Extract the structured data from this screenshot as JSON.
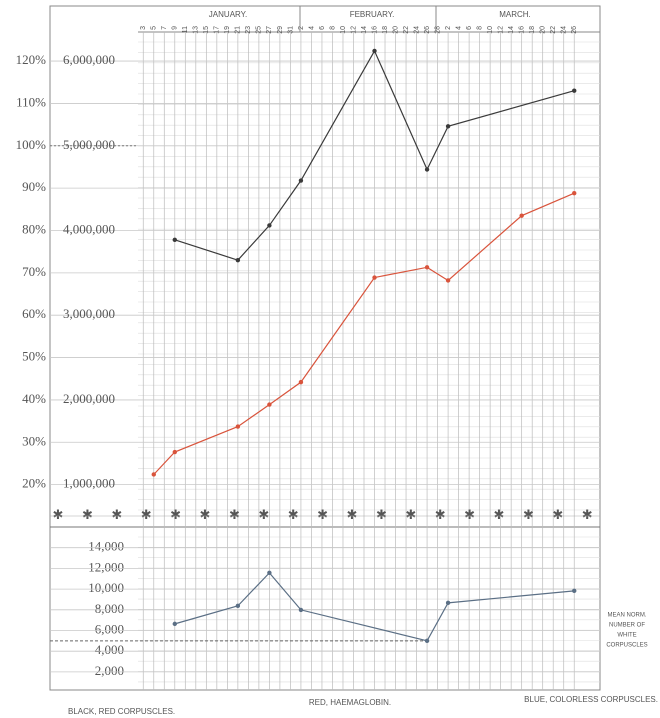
{
  "chart_data": [
    {
      "type": "line",
      "months": [
        "JANUARY.",
        "FEBRUARY.",
        "MARCH."
      ],
      "xlim": [
        2,
        88
      ],
      "xticks": [
        3,
        5,
        7,
        9,
        11,
        13,
        15,
        17,
        19,
        21,
        23,
        25,
        27,
        29,
        31,
        {
          "value": 33,
          "label": "2"
        },
        {
          "value": 35,
          "label": "4"
        },
        {
          "value": 37,
          "label": "6"
        },
        {
          "value": 39,
          "label": "8"
        },
        {
          "value": 41,
          "label": "10"
        },
        {
          "value": 43,
          "label": "12"
        },
        {
          "value": 45,
          "label": "14"
        },
        {
          "value": 47,
          "label": "16"
        },
        {
          "value": 49,
          "label": "18"
        },
        {
          "value": 51,
          "label": "20"
        },
        {
          "value": 53,
          "label": "22"
        },
        {
          "value": 55,
          "label": "24"
        },
        {
          "value": 57,
          "label": "26"
        },
        {
          "value": 59,
          "label": "28"
        },
        {
          "value": 61,
          "label": "2"
        },
        {
          "value": 63,
          "label": "4"
        },
        {
          "value": 65,
          "label": "6"
        },
        {
          "value": 67,
          "label": "8"
        },
        {
          "value": 69,
          "label": "10"
        },
        {
          "value": 71,
          "label": "12"
        },
        {
          "value": 73,
          "label": "14"
        },
        {
          "value": 75,
          "label": "16"
        },
        {
          "value": 77,
          "label": "18"
        },
        {
          "value": 79,
          "label": "20"
        },
        {
          "value": 81,
          "label": "22"
        },
        {
          "value": 83,
          "label": "24"
        },
        {
          "value": 85,
          "label": "26"
        }
      ],
      "ylim": [
        10,
        133
      ],
      "yticks": [
        {
          "value": 20,
          "label": "20%"
        },
        {
          "value": 30,
          "label": "30%"
        },
        {
          "value": 40,
          "label": "40%"
        },
        {
          "value": 50,
          "label": "50%"
        },
        {
          "value": 60,
          "label": "60%"
        },
        {
          "value": 70,
          "label": "70%"
        },
        {
          "value": 80,
          "label": "80%"
        },
        {
          "value": 90,
          "label": "90%"
        },
        {
          "value": 100,
          "label": "100%"
        },
        {
          "value": 110,
          "label": "110%"
        },
        {
          "value": 120,
          "label": "120%"
        }
      ],
      "y2lim": [
        500000,
        6650000
      ],
      "y2ticks": [
        {
          "value": 1000000,
          "label": "1,000,000"
        },
        {
          "value": 2000000,
          "label": "2,000,000"
        },
        {
          "value": 3000000,
          "label": "3,000,000"
        },
        {
          "value": 4000000,
          "label": "4,000,000"
        },
        {
          "value": 5000000,
          "label": "5,000,000"
        },
        {
          "value": 6000000,
          "label": "6,000,000"
        }
      ],
      "reference_line": 100,
      "grid": true,
      "series": [
        {
          "name": "BLACK, RED CORPUSCLES.",
          "color": "#3a3a3a",
          "axis": "y2",
          "x": [
            9,
            21,
            27,
            33,
            47,
            57,
            61,
            85
          ],
          "values": [
            3890000,
            3650000,
            4060000,
            4590000,
            6120000,
            4720000,
            5230000,
            5650000
          ]
        },
        {
          "name": "RED, HAEMAGLOBIN.",
          "color": "#d9543c",
          "x": [
            5,
            9,
            21,
            27,
            33,
            47,
            57,
            61,
            75,
            85
          ],
          "values": [
            22.4,
            27.7,
            33.7,
            38.9,
            44.2,
            68.9,
            71.3,
            68.2,
            83.5,
            88.8
          ]
        }
      ]
    },
    {
      "type": "line",
      "ylim": [
        250,
        16000
      ],
      "yticks": [
        {
          "value": 2000,
          "label": "2,000"
        },
        {
          "value": 4000,
          "label": "4,000"
        },
        {
          "value": 6000,
          "label": "6,000"
        },
        {
          "value": 8000,
          "label": "8,000"
        },
        {
          "value": 10000,
          "label": "10,000"
        },
        {
          "value": 12000,
          "label": "12,000"
        },
        {
          "value": 14000,
          "label": "14,000"
        }
      ],
      "reference_line": 5000,
      "annotation": [
        "MEAN NORM.",
        "NUMBER OF",
        "WHITE",
        "CORPUSCLES"
      ],
      "grid": true,
      "series": [
        {
          "name": "BLUE, COLORLESS CORPUSCLES.",
          "color": "#5b6f85",
          "x": [
            9,
            21,
            27,
            33,
            57,
            61,
            85
          ],
          "values": [
            6640,
            8380,
            11570,
            7990,
            5000,
            8670,
            9830
          ]
        }
      ]
    }
  ]
}
